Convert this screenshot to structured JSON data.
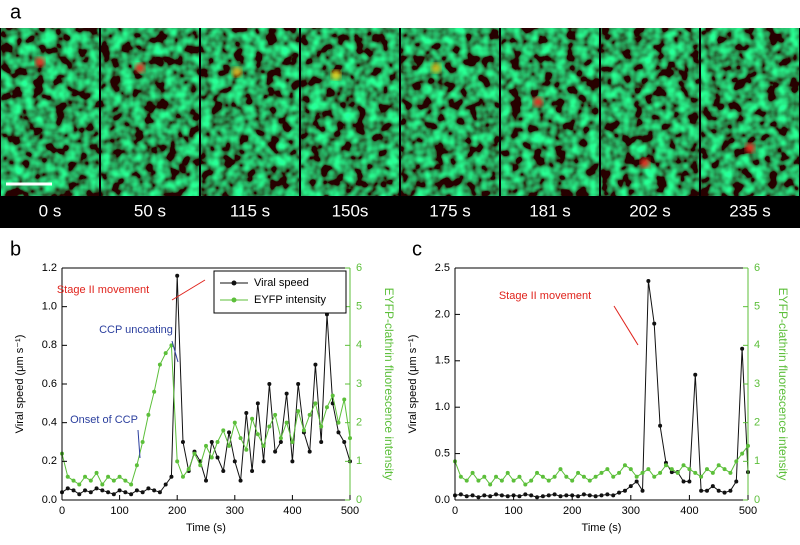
{
  "panel_a": {
    "label": "a",
    "frames": [
      "0 s",
      "50 s",
      "115 s",
      "150s",
      "175 s",
      "181 s",
      "202 s",
      "235 s"
    ]
  },
  "chart_data": [
    {
      "type": "line",
      "label": "b",
      "x_label": "Time (s)",
      "y_label": "Viral speed (μm s⁻¹)",
      "y2_label": "EYFP-clathrin fluorescence intensity",
      "xlim": [
        0,
        500
      ],
      "xticks": [
        0,
        100,
        200,
        300,
        400,
        500
      ],
      "ylim": [
        0,
        1.2
      ],
      "yticks": [
        {
          "value": 0,
          "label": "0.0"
        },
        0.2,
        0.4,
        0.6,
        0.8,
        {
          "value": 1,
          "label": "1.0"
        },
        1.2
      ],
      "y2lim": [
        0,
        6
      ],
      "y2ticks": [
        0,
        1,
        2,
        3,
        4,
        5,
        6
      ],
      "legend": "upper right",
      "x": [
        0,
        10,
        20,
        30,
        40,
        50,
        60,
        70,
        80,
        90,
        100,
        110,
        120,
        130,
        140,
        150,
        160,
        170,
        180,
        190,
        200,
        210,
        220,
        230,
        240,
        250,
        260,
        270,
        280,
        290,
        300,
        310,
        320,
        330,
        340,
        350,
        360,
        370,
        380,
        390,
        400,
        410,
        420,
        430,
        440,
        450,
        460,
        470,
        480,
        490,
        500
      ],
      "series": [
        {
          "name": "Viral speed",
          "color": "#111111",
          "values": [
            0.04,
            0.06,
            0.05,
            0.03,
            0.05,
            0.04,
            0.06,
            0.05,
            0.04,
            0.03,
            0.05,
            0.04,
            0.03,
            0.05,
            0.04,
            0.06,
            0.05,
            0.04,
            0.08,
            0.12,
            1.16,
            0.3,
            0.15,
            0.25,
            0.2,
            0.1,
            0.3,
            0.22,
            0.15,
            0.35,
            0.2,
            0.1,
            0.45,
            0.15,
            0.5,
            0.2,
            0.6,
            0.25,
            0.3,
            0.55,
            0.2,
            0.6,
            0.35,
            0.25,
            0.7,
            0.3,
            0.96,
            0.5,
            0.35,
            0.3,
            0.2
          ]
        },
        {
          "name": "EYFP intensity",
          "color": "#5cbf3a",
          "axis": "y2",
          "values": [
            1.2,
            0.6,
            0.5,
            0.4,
            0.6,
            0.5,
            0.7,
            0.4,
            0.6,
            0.5,
            0.6,
            0.5,
            0.4,
            0.9,
            1.5,
            2.2,
            2.8,
            3.5,
            3.8,
            4.0,
            1.0,
            0.6,
            0.8,
            1.2,
            0.9,
            1.4,
            1.1,
            1.5,
            1.8,
            1.4,
            2.0,
            1.6,
            1.3,
            2.1,
            1.7,
            1.4,
            1.9,
            2.2,
            1.6,
            2.0,
            1.5,
            2.3,
            1.8,
            2.2,
            2.5,
            1.9,
            2.4,
            2.7,
            2.0,
            2.6,
            1.6
          ]
        }
      ],
      "annotations": [
        {
          "text": "Stage II movement",
          "color": "#e0231c"
        },
        {
          "text": "CCP uncoating",
          "color": "#2b3f9e"
        },
        {
          "text": "Onset of CCP",
          "color": "#2b3f9e"
        }
      ]
    },
    {
      "type": "line",
      "label": "c",
      "x_label": "Time (s)",
      "y_label": "Viral speed (μm s⁻¹)",
      "y2_label": "EYFP-clathrin fluorescence intensity",
      "xlim": [
        0,
        500
      ],
      "xticks": [
        0,
        100,
        200,
        300,
        400,
        500
      ],
      "ylim": [
        0,
        2.5
      ],
      "yticks": [
        {
          "value": 0,
          "label": "0.0"
        },
        0.5,
        {
          "value": 1,
          "label": "1.0"
        },
        1.5,
        {
          "value": 2,
          "label": "2.0"
        },
        2.5
      ],
      "y2lim": [
        0,
        6
      ],
      "y2ticks": [
        0,
        1,
        2,
        3,
        4,
        5,
        6
      ],
      "x": [
        0,
        10,
        20,
        30,
        40,
        50,
        60,
        70,
        80,
        90,
        100,
        110,
        120,
        130,
        140,
        150,
        160,
        170,
        180,
        190,
        200,
        210,
        220,
        230,
        240,
        250,
        260,
        270,
        280,
        290,
        300,
        310,
        320,
        330,
        340,
        350,
        360,
        370,
        380,
        390,
        400,
        410,
        420,
        430,
        440,
        450,
        460,
        470,
        480,
        490,
        500
      ],
      "series": [
        {
          "color": "#111111",
          "values": [
            0.05,
            0.06,
            0.04,
            0.05,
            0.03,
            0.05,
            0.04,
            0.06,
            0.05,
            0.04,
            0.05,
            0.04,
            0.06,
            0.05,
            0.03,
            0.04,
            0.05,
            0.06,
            0.04,
            0.05,
            0.05,
            0.04,
            0.06,
            0.05,
            0.04,
            0.05,
            0.06,
            0.05,
            0.08,
            0.1,
            0.15,
            0.2,
            0.1,
            2.36,
            1.9,
            0.8,
            0.4,
            0.3,
            0.3,
            0.2,
            0.2,
            1.35,
            0.1,
            0.1,
            0.15,
            0.1,
            0.08,
            0.1,
            0.2,
            1.63,
            0.3
          ]
        },
        {
          "color": "#5cbf3a",
          "axis": "y2",
          "values": [
            1.0,
            0.6,
            0.5,
            0.7,
            0.5,
            0.6,
            0.4,
            0.6,
            0.5,
            0.7,
            0.5,
            0.6,
            0.4,
            0.5,
            0.7,
            0.6,
            0.5,
            0.6,
            0.8,
            0.6,
            0.5,
            0.7,
            0.6,
            0.5,
            0.6,
            0.7,
            0.8,
            0.6,
            0.7,
            0.9,
            0.8,
            0.6,
            0.7,
            0.8,
            0.6,
            0.7,
            0.9,
            0.8,
            0.7,
            0.9,
            0.8,
            0.7,
            0.6,
            0.8,
            0.7,
            0.9,
            0.8,
            0.7,
            1.0,
            1.2,
            1.4
          ]
        }
      ],
      "annotations": [
        {
          "text": "Stage II movement",
          "color": "#e0231c"
        }
      ]
    }
  ]
}
